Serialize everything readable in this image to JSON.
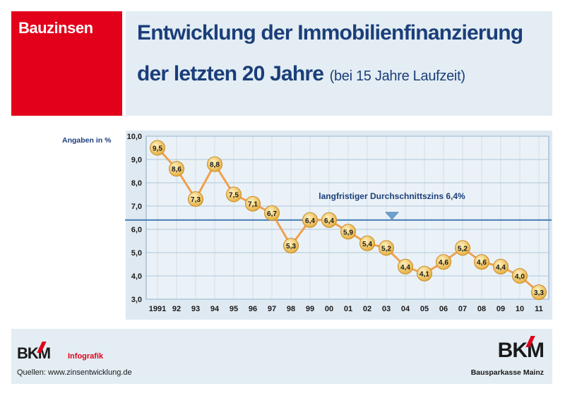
{
  "badge": {
    "label": "Bauzinsen"
  },
  "header": {
    "title_line1": "Entwicklung der Immobilienfinanzierung",
    "title_line2": "der letzten 20 Jahre",
    "title_sub": "(bei 15 Jahre Laufzeit)"
  },
  "unit_label": "Angaben in %",
  "chart_data": {
    "type": "line",
    "categories": [
      "1991",
      "92",
      "93",
      "94",
      "95",
      "96",
      "97",
      "98",
      "99",
      "00",
      "01",
      "02",
      "03",
      "04",
      "05",
      "06",
      "07",
      "08",
      "09",
      "10",
      "11"
    ],
    "series": [
      {
        "name": "Bauzinsen (15 Jahre Laufzeit)",
        "values": [
          9.5,
          8.6,
          7.3,
          8.8,
          7.5,
          7.1,
          6.7,
          5.3,
          6.4,
          6.4,
          5.9,
          5.4,
          5.2,
          4.4,
          4.1,
          4.6,
          5.2,
          4.6,
          4.4,
          4.0,
          3.3
        ],
        "labels": [
          "9,5",
          "8,6",
          "7,3",
          "8,8",
          "7,5",
          "7,1",
          "6,7",
          "5,3",
          "6,4",
          "6,4",
          "5,9",
          "5,4",
          "5,2",
          "4,4",
          "4,1",
          "4,6",
          "5,2",
          "4,6",
          "4,4",
          "4,0",
          "3,3"
        ]
      }
    ],
    "ylim": [
      3.0,
      10.0
    ],
    "yticks": [
      "3,0",
      "4,0",
      "5,0",
      "6,0",
      "7,0",
      "8,0",
      "9,0",
      "10,0"
    ],
    "reference_line": {
      "value": 6.4,
      "label": "langfristiger Durchschnittszins 6,4%",
      "marker_category": "03"
    },
    "grid": true,
    "colors": {
      "line": "#f0a050",
      "reference": "#4d82b8",
      "point_fill": "#f8d070",
      "axis_text": "#1a1a1a",
      "plot_bg": "#ebf2f7"
    }
  },
  "footer": {
    "logo_left": "BKM",
    "infografik": "Infografik",
    "sources": "Quellen: www.zinsentwicklung.de",
    "logo_right": "BKM",
    "tagline": "Bausparkasse Mainz"
  }
}
